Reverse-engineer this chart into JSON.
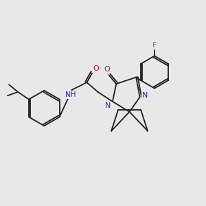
{
  "background_color": "#e8e8e8",
  "bond_color": "#222222",
  "N_color": "#2222bb",
  "O_color": "#cc1111",
  "F_color": "#cc44aa",
  "H_color": "#44aaaa",
  "figsize": [
    3.0,
    3.0
  ],
  "dpi": 100,
  "lw": 1.35,
  "fs": 7.5,
  "xlim": [
    10,
    290
  ],
  "ylim": [
    55,
    285
  ]
}
